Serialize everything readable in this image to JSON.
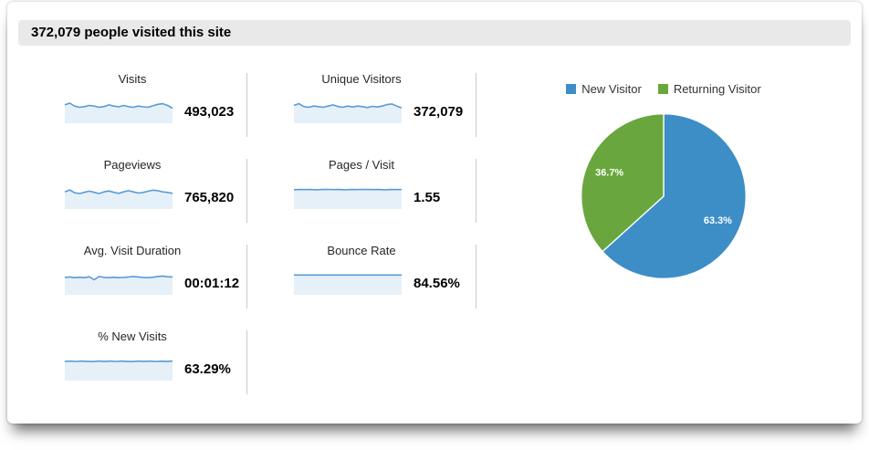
{
  "header": {
    "title": "372,079 people visited this site"
  },
  "metrics": [
    {
      "id": "visits",
      "label": "Visits",
      "value": "493,023",
      "spark": [
        0.7,
        0.85,
        0.6,
        0.5,
        0.55,
        0.65,
        0.6,
        0.5,
        0.56,
        0.7,
        0.6,
        0.54,
        0.65,
        0.55,
        0.5,
        0.6,
        0.54,
        0.5,
        0.62,
        0.75,
        0.8,
        0.65,
        0.42
      ]
    },
    {
      "id": "unique-visitors",
      "label": "Unique Visitors",
      "value": "372,079",
      "spark": [
        0.66,
        0.8,
        0.56,
        0.5,
        0.6,
        0.55,
        0.5,
        0.6,
        0.7,
        0.56,
        0.5,
        0.6,
        0.52,
        0.6,
        0.55,
        0.48,
        0.58,
        0.52,
        0.6,
        0.72,
        0.78,
        0.6,
        0.44
      ]
    },
    {
      "id": "pageviews",
      "label": "Pageviews",
      "value": "765,820",
      "spark": [
        0.6,
        0.76,
        0.52,
        0.46,
        0.56,
        0.66,
        0.56,
        0.46,
        0.6,
        0.68,
        0.56,
        0.48,
        0.6,
        0.7,
        0.6,
        0.5,
        0.55,
        0.65,
        0.75,
        0.7,
        0.6,
        0.55,
        0.48
      ]
    },
    {
      "id": "pages-per-visit",
      "label": "Pages / Visit",
      "value": "1.55",
      "spark": [
        0.78,
        0.8,
        0.79,
        0.8,
        0.78,
        0.8,
        0.81,
        0.79,
        0.8,
        0.78,
        0.8,
        0.79,
        0.81,
        0.8,
        0.79,
        0.8,
        0.78,
        0.8,
        0.79,
        0.8
      ]
    },
    {
      "id": "avg-visit-duration",
      "label": "Avg. Visit Duration",
      "value": "00:01:12",
      "spark": [
        0.62,
        0.66,
        0.6,
        0.64,
        0.6,
        0.68,
        0.42,
        0.7,
        0.62,
        0.6,
        0.64,
        0.6,
        0.62,
        0.66,
        0.7,
        0.66,
        0.62,
        0.6,
        0.64,
        0.7,
        0.74,
        0.68,
        0.66
      ]
    },
    {
      "id": "bounce-rate",
      "label": "Bounce Rate",
      "value": "84.56%",
      "spark": [
        0.82,
        0.82,
        0.82,
        0.82,
        0.82,
        0.82,
        0.82,
        0.82,
        0.82,
        0.82,
        0.82,
        0.82,
        0.82,
        0.82,
        0.82,
        0.82,
        0.82,
        0.82,
        0.82,
        0.82
      ]
    },
    {
      "id": "new-visits-pct",
      "label": "% New Visits",
      "value": "63.29%",
      "spark": [
        0.78,
        0.8,
        0.77,
        0.8,
        0.78,
        0.76,
        0.8,
        0.78,
        0.8,
        0.77,
        0.8,
        0.78,
        0.76,
        0.8,
        0.78,
        0.8,
        0.77,
        0.79,
        0.78,
        0.8
      ]
    }
  ],
  "chart_data": {
    "type": "pie",
    "segments": [
      {
        "label": "New Visitor",
        "value": 63.3,
        "display": "63.3%",
        "color": "#3d8ec6"
      },
      {
        "label": "Returning Visitor",
        "value": 36.7,
        "display": "36.7%",
        "color": "#69a73e"
      }
    ],
    "legend_position": "top",
    "start_angle_deg": 0,
    "direction": "clockwise"
  },
  "colors": {
    "spark_line": "#5a9bd5",
    "spark_fill": "#e6f0f9",
    "divider": "#c9c9c9",
    "header_bg": "#e9e9e9"
  }
}
